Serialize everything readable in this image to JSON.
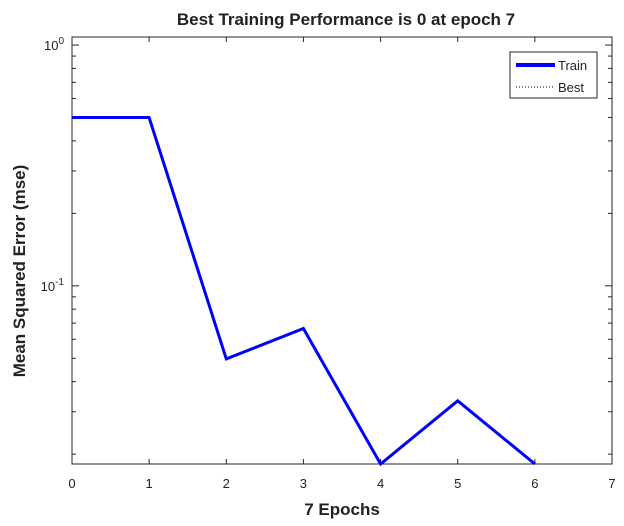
{
  "chart_data": {
    "type": "line",
    "title": "Best Training Performance is 0 at epoch 7",
    "xlabel": "7 Epochs",
    "ylabel": "Mean Squared Error  (mse)",
    "xlim": [
      0,
      7
    ],
    "ylim": [
      0.0182,
      1.08
    ],
    "yscale": "log",
    "grid": false,
    "legend_position": "top-right",
    "x_ticks": [
      0,
      1,
      2,
      3,
      4,
      5,
      6,
      7
    ],
    "y_ticks": [
      {
        "value": 1,
        "base": "10",
        "exponent": "0"
      },
      {
        "value": 0.1,
        "base": "10",
        "exponent": "-1"
      }
    ],
    "series": [
      {
        "name": "Train",
        "color": "#0000ff",
        "style": "solid",
        "x": [
          0,
          1,
          2,
          3,
          4,
          5,
          6
        ],
        "y": [
          0.5,
          0.5,
          0.0497,
          0.0665,
          0.0182,
          0.0333,
          0.0182
        ]
      },
      {
        "name": "Best",
        "color": "#000000",
        "style": "dotted",
        "x": [],
        "y": []
      }
    ]
  }
}
